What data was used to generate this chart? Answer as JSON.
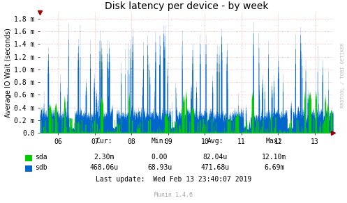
{
  "title": "Disk latency per device - by week",
  "ylabel": "Average IO Wait (seconds)",
  "bg_color": "#ffffff",
  "grid_color": "#ffaaaa",
  "x_tick_labels": [
    "06",
    "07",
    "08",
    "09",
    "10",
    "11",
    "12",
    "13"
  ],
  "x_tick_positions": [
    6,
    7,
    8,
    9,
    10,
    11,
    12,
    13
  ],
  "xlim": [
    5.5,
    13.5
  ],
  "ylim": [
    0,
    0.0019
  ],
  "ytick_vals": [
    0.0,
    0.0002,
    0.0004,
    0.0006,
    0.0008,
    0.001,
    0.0012,
    0.0014,
    0.0016,
    0.0018
  ],
  "ytick_labels": [
    "0.0",
    "0.2 m",
    "0.4 m",
    "0.6 m",
    "0.8 m",
    "1.0 m",
    "1.2 m",
    "1.4 m",
    "1.6 m",
    "1.8 m"
  ],
  "sda_color": "#00cc00",
  "sdb_color": "#0066cc",
  "stats_cur_sda": "2.30m",
  "stats_cur_sdb": "468.06u",
  "stats_min_sda": "0.00",
  "stats_min_sdb": "68.93u",
  "stats_avg_sda": "82.04u",
  "stats_avg_sdb": "471.68u",
  "stats_max_sda": "12.10m",
  "stats_max_sdb": "6.69m",
  "last_update": "Last update:  Wed Feb 13 23:40:07 2019",
  "watermark": "RRDTOOL / TOBI OETIKER",
  "footer": "Munin 1.4.6",
  "title_fontsize": 10,
  "axis_label_fontsize": 7,
  "tick_fontsize": 7,
  "stats_fontsize": 7,
  "footer_fontsize": 6,
  "watermark_fontsize": 5
}
